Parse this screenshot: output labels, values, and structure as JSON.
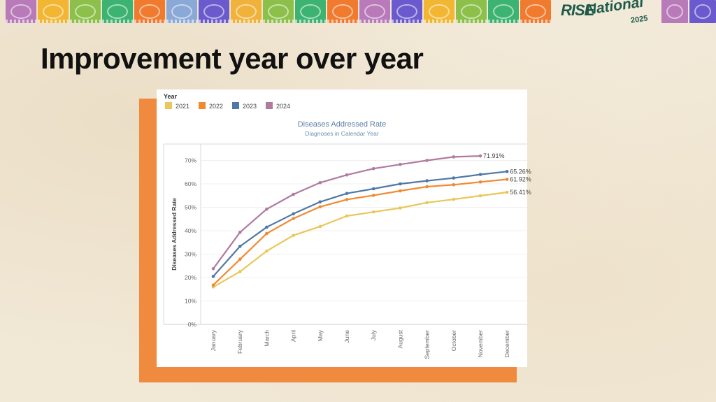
{
  "slide": {
    "title": "Improvement year over year"
  },
  "logo": {
    "rise": "RISE",
    "national": "National",
    "year": "2025"
  },
  "banner": {
    "flag_colors": [
      "#b97ab9",
      "#f2b632",
      "#8cc04a",
      "#3cb371",
      "#f07a2e",
      "#8aa9d6",
      "#6a5acd",
      "#f0b23a",
      "#8cc04a",
      "#3cb371",
      "#f07a2e",
      "#b97ab9",
      "#6a5acd",
      "#f2b632",
      "#8cc04a",
      "#3cb371",
      "#f07a2e"
    ],
    "right_flag_colors": [
      "#b97ab9",
      "#6a5acd"
    ]
  },
  "chart_data": {
    "type": "line",
    "title": "Diseases Addressed Rate",
    "subtitle": "Diagnoses in Calendar Year",
    "ylabel": "Diseases Addressed Rate",
    "xlabel": "",
    "legend_title": "Year",
    "legend_position": "top-left",
    "ylim": [
      0,
      77
    ],
    "yticks": [
      "0%",
      "10%",
      "20%",
      "30%",
      "40%",
      "50%",
      "60%",
      "70%"
    ],
    "categories": [
      "January",
      "February",
      "March",
      "April",
      "May",
      "June",
      "July",
      "August",
      "September",
      "October",
      "November",
      "December"
    ],
    "series": [
      {
        "name": "2021",
        "color": "#e9c75a",
        "values": [
          16,
          22.5,
          31.3,
          38,
          41.8,
          46.3,
          48,
          49.7,
          52,
          53.4,
          54.9,
          56.41
        ],
        "end_label": "56.41%"
      },
      {
        "name": "2022",
        "color": "#f08a32",
        "values": [
          16.8,
          27.8,
          38.8,
          45.2,
          50.2,
          53.3,
          55.1,
          57,
          58.8,
          59.6,
          60.8,
          61.92
        ],
        "end_label": "61.92%"
      },
      {
        "name": "2023",
        "color": "#4e79a7",
        "values": [
          20.5,
          33.3,
          41.5,
          47.2,
          52.3,
          55.9,
          57.9,
          60,
          61.3,
          62.5,
          64,
          65.26
        ],
        "end_label": "65.26%"
      },
      {
        "name": "2024",
        "color": "#b07aa1",
        "values": [
          23.8,
          39.3,
          49.2,
          55.5,
          60.5,
          63.8,
          66.5,
          68.3,
          70,
          71.5,
          71.91,
          null
        ],
        "end_label": "71.91%"
      }
    ],
    "grid": true
  }
}
